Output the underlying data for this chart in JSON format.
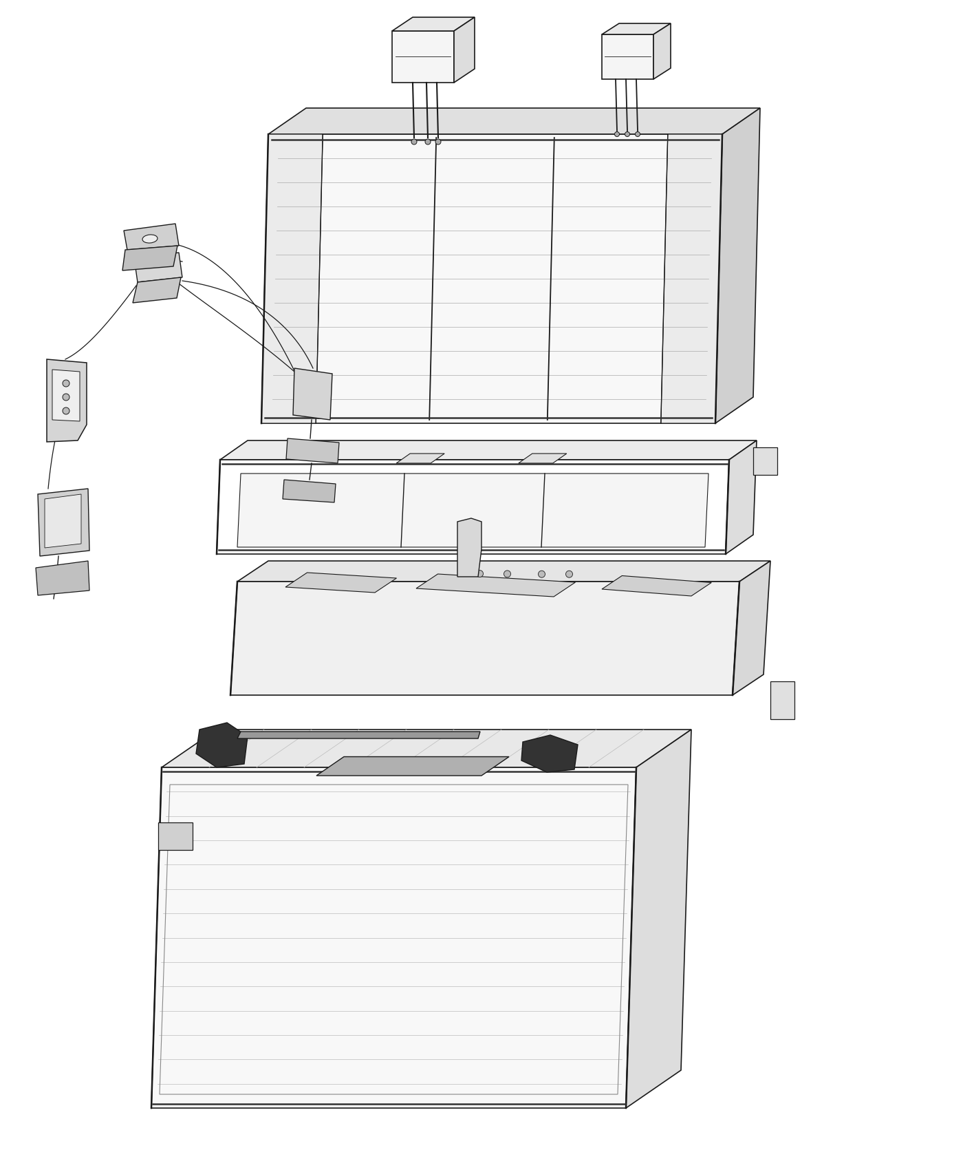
{
  "bg_color": "#ffffff",
  "line_color": "#1a1a1a",
  "fig_width": 14.0,
  "fig_height": 17.0,
  "dpi": 100,
  "lw_main": 1.2,
  "lw_thin": 0.6,
  "lw_thick": 1.8
}
